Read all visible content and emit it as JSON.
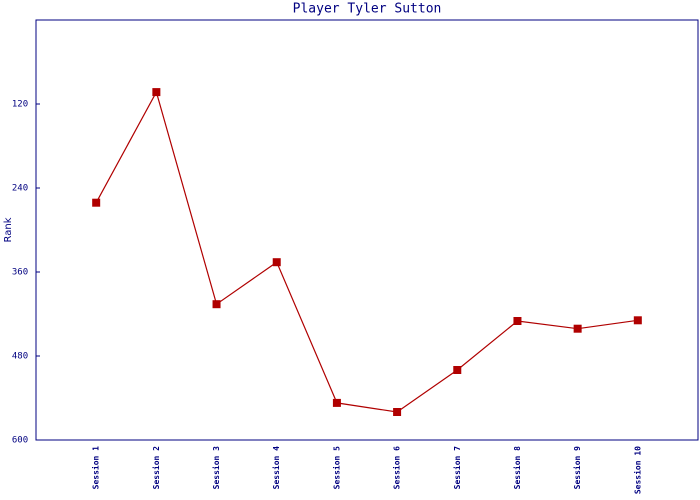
{
  "chart_data": {
    "type": "line",
    "title": "Player Tyler Sutton",
    "y_label": "Rank",
    "categories": [
      "Session 1",
      "Session 2",
      "Session 3",
      "Session 4",
      "Session 5",
      "Session 6",
      "Session 7",
      "Session 8",
      "Session 9",
      "Session 10"
    ],
    "series": [
      {
        "name": "Rank",
        "color": "#b00000",
        "values": [
          261,
          103,
          406,
          346,
          547,
          560,
          500,
          430,
          441,
          429
        ]
      }
    ],
    "ylim": [
      600,
      0
    ],
    "yticks": [
      120,
      240,
      360,
      480,
      600
    ],
    "axis_color": "#000080"
  }
}
